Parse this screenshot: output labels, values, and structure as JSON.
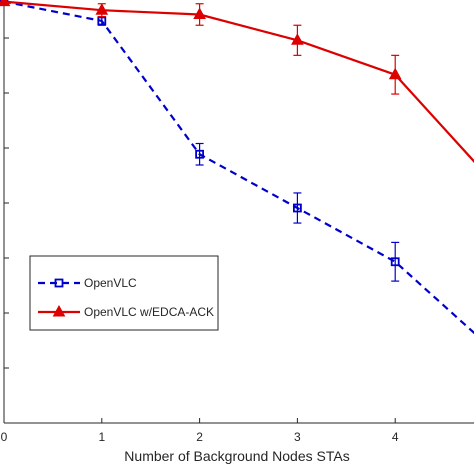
{
  "chart_data": {
    "type": "line",
    "xlabel": "Number of Background Nodes STAs",
    "ylabel": "",
    "title": "",
    "x": [
      0,
      1,
      2,
      3,
      4,
      5
    ],
    "xlim": [
      0,
      5
    ],
    "ylim": [
      0,
      1
    ],
    "x_tick_labels": [
      "0",
      "1",
      "2",
      "3",
      "4"
    ],
    "grid": false,
    "legend_position": "lower-left",
    "series": [
      {
        "name": "OpenVLC",
        "color": "#0000cc",
        "line_style": "dashed",
        "marker": "square",
        "values": [
          0.98,
          0.935,
          0.625,
          0.5,
          0.375,
          0.17
        ],
        "errors": [
          0.0,
          0.01,
          0.025,
          0.035,
          0.045,
          0.0
        ]
      },
      {
        "name": "OpenVLC w/EDCA-ACK",
        "color": "#dd0000",
        "line_style": "solid",
        "marker": "triangle",
        "values": [
          0.98,
          0.96,
          0.95,
          0.89,
          0.81,
          0.56
        ],
        "errors": [
          0.0,
          0.015,
          0.025,
          0.035,
          0.045,
          0.0
        ]
      }
    ]
  }
}
